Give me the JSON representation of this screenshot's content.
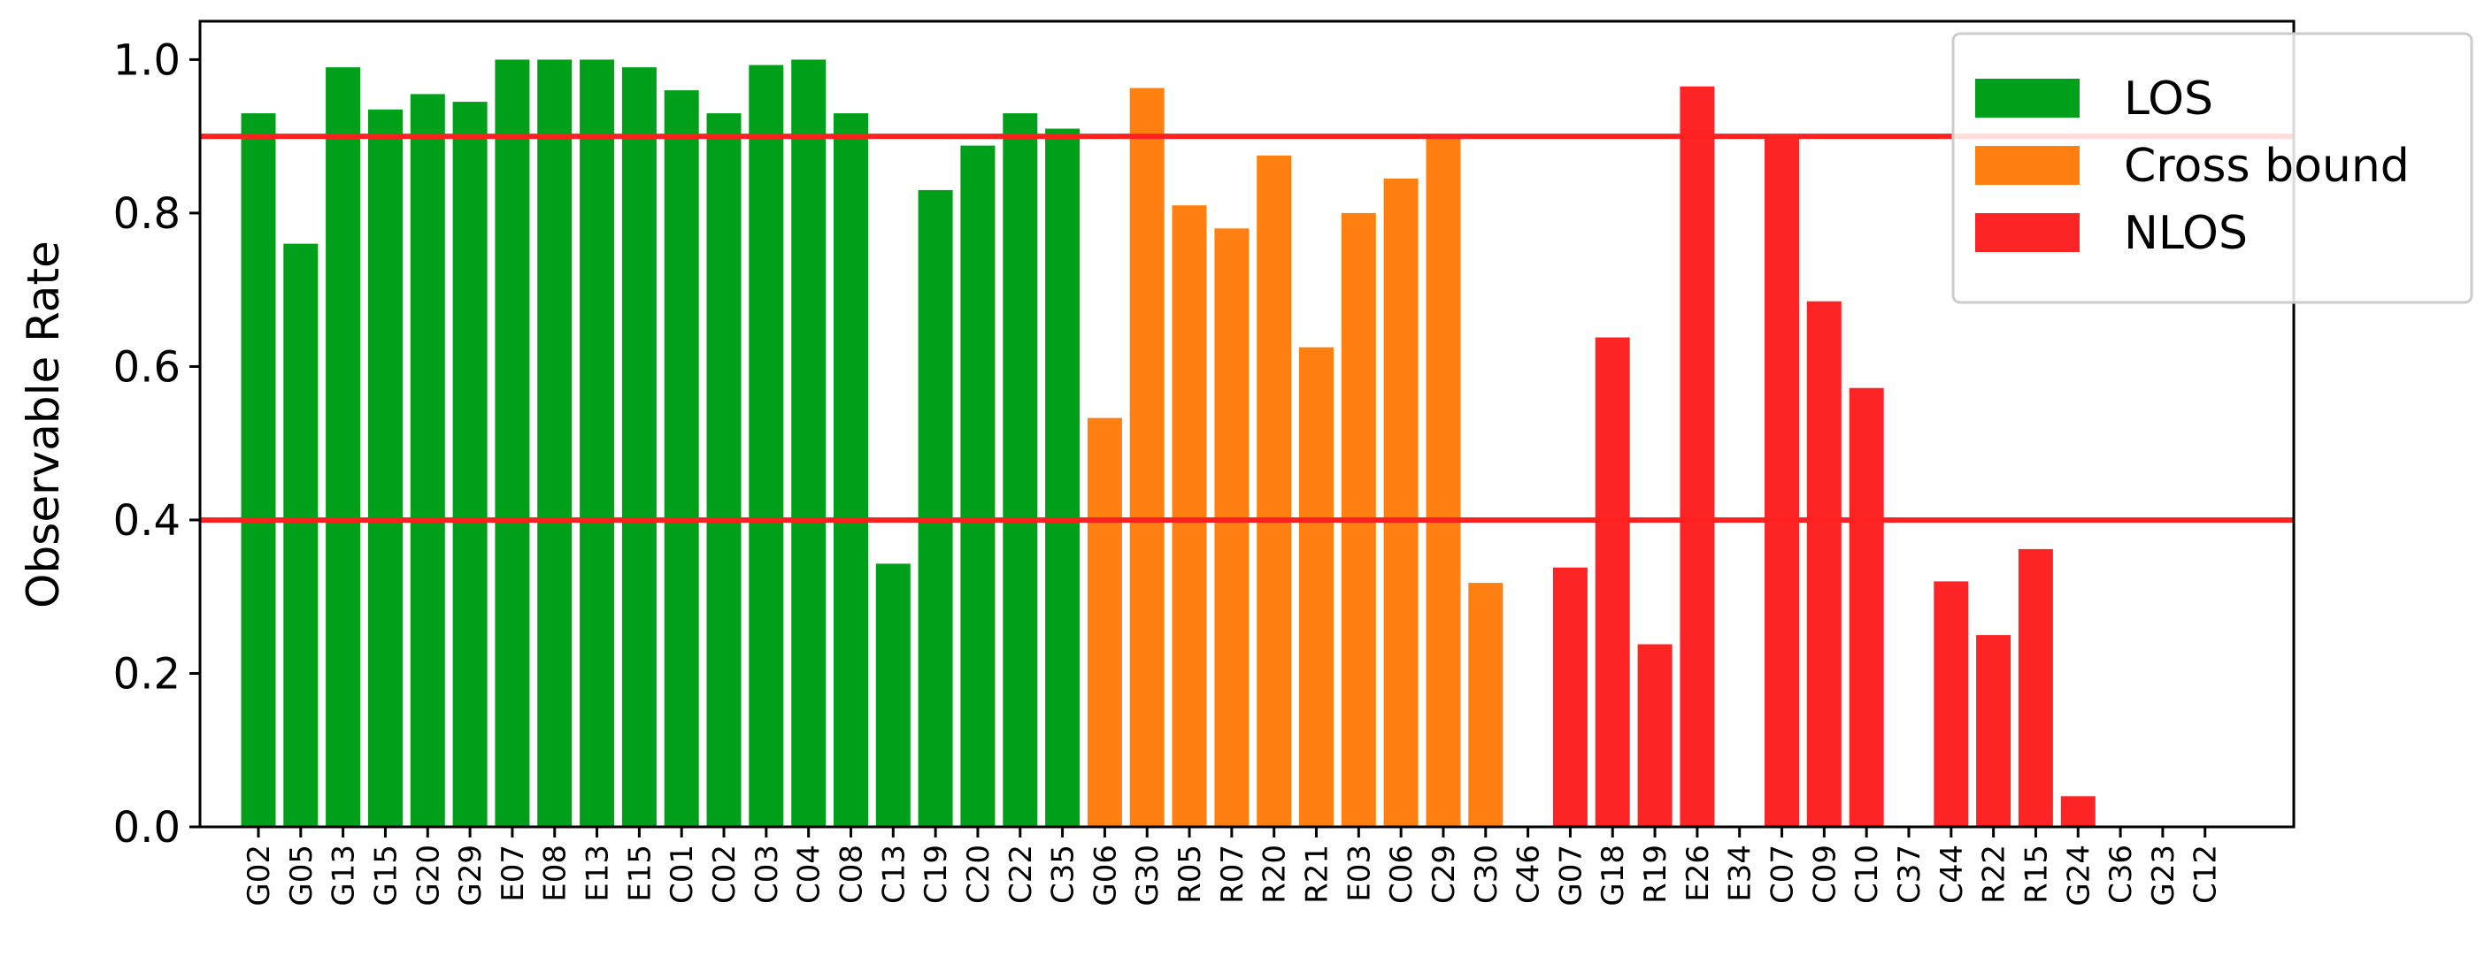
{
  "chart_data": {
    "type": "bar",
    "ylabel": "Observable Rate",
    "xlabel": "",
    "ylim": [
      0,
      1.05
    ],
    "yticks": [
      "0.0",
      "0.2",
      "0.4",
      "0.6",
      "0.8",
      "1.0"
    ],
    "reference_lines": [
      0.9,
      0.4
    ],
    "reference_line_color": "#ff2020",
    "legend_position": "top-right",
    "series": [
      {
        "name": "LOS",
        "color": "#00a01a"
      },
      {
        "name": "Cross bound",
        "color": "#ff8010"
      },
      {
        "name": "NLOS",
        "color": "#fc2424"
      }
    ],
    "categories": [
      "G02",
      "G05",
      "G13",
      "G15",
      "G20",
      "G29",
      "E07",
      "E08",
      "E13",
      "E15",
      "C01",
      "C02",
      "C03",
      "C04",
      "C08",
      "C13",
      "C19",
      "C20",
      "C22",
      "C35",
      "G06",
      "G30",
      "R05",
      "R07",
      "R20",
      "R21",
      "E03",
      "C06",
      "C29",
      "C30",
      "C46",
      "G07",
      "G18",
      "R19",
      "E26",
      "E34",
      "C07",
      "C09",
      "C10",
      "C37",
      "C44",
      "R22",
      "R15",
      "G24",
      "C36",
      "G23",
      "C12"
    ],
    "values": [
      0.93,
      0.76,
      0.99,
      0.935,
      0.955,
      0.945,
      1.0,
      1.0,
      1.0,
      0.99,
      0.96,
      0.93,
      0.993,
      1.0,
      0.93,
      0.343,
      0.83,
      0.888,
      0.93,
      0.91,
      0.533,
      0.963,
      0.81,
      0.78,
      0.875,
      0.625,
      0.8,
      0.845,
      0.9,
      0.318,
      0.0,
      0.338,
      0.638,
      0.238,
      0.965,
      0.0,
      0.9,
      0.685,
      0.572,
      0.0,
      0.32,
      0.25,
      0.362,
      0.04,
      0.0,
      0.0,
      0.0
    ],
    "groups": [
      "LOS",
      "LOS",
      "LOS",
      "LOS",
      "LOS",
      "LOS",
      "LOS",
      "LOS",
      "LOS",
      "LOS",
      "LOS",
      "LOS",
      "LOS",
      "LOS",
      "LOS",
      "LOS",
      "LOS",
      "LOS",
      "LOS",
      "LOS",
      "Cross bound",
      "Cross bound",
      "Cross bound",
      "Cross bound",
      "Cross bound",
      "Cross bound",
      "Cross bound",
      "Cross bound",
      "Cross bound",
      "Cross bound",
      "Cross bound",
      "NLOS",
      "NLOS",
      "NLOS",
      "NLOS",
      "NLOS",
      "NLOS",
      "NLOS",
      "NLOS",
      "NLOS",
      "NLOS",
      "NLOS",
      "NLOS",
      "NLOS",
      "NLOS",
      "NLOS",
      "NLOS"
    ]
  }
}
